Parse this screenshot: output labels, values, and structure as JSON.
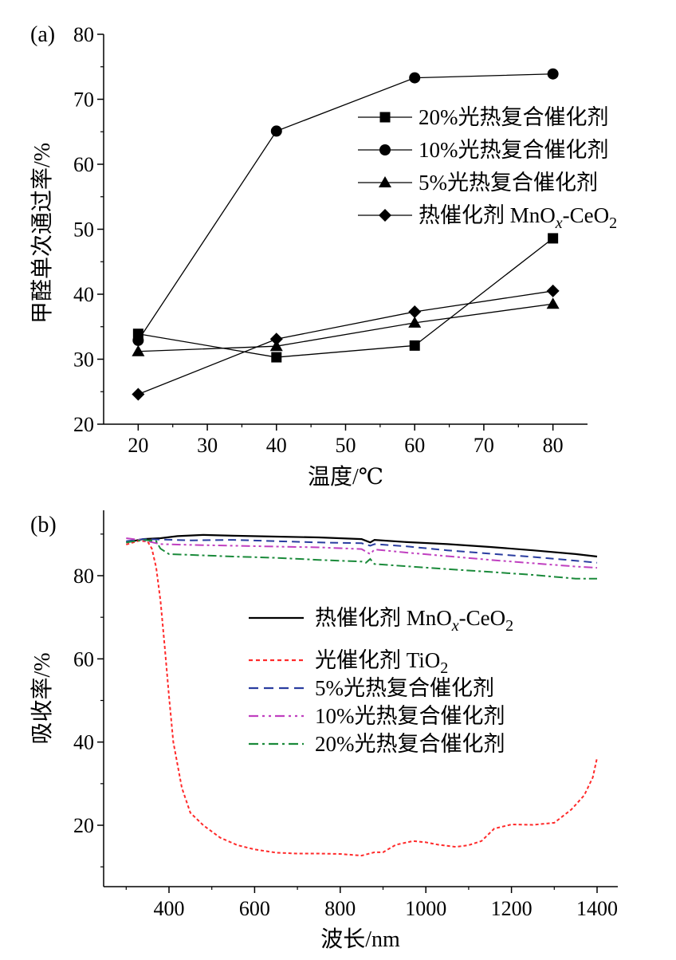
{
  "chart_data": [
    {
      "panel_label": "(a)",
      "type": "line",
      "xlabel": "温度/℃",
      "ylabel": "甲醛单次通过率/%",
      "xlim": [
        15,
        85
      ],
      "ylim": [
        20,
        80
      ],
      "xticks": [
        20,
        30,
        40,
        50,
        60,
        70,
        80
      ],
      "yticks": [
        20,
        30,
        40,
        50,
        60,
        70,
        80
      ],
      "legend_position": "upper-right",
      "x": [
        20,
        40,
        60,
        80
      ],
      "series": [
        {
          "name": "20%光热复合催化剂",
          "marker": "square",
          "values": [
            33.9,
            30.3,
            32.1,
            48.6
          ]
        },
        {
          "name": "10%光热复合催化剂",
          "marker": "circle",
          "values": [
            32.9,
            65.1,
            73.3,
            73.9
          ]
        },
        {
          "name": "5%光热复合催化剂",
          "marker": "triangle",
          "values": [
            31.2,
            32.0,
            35.6,
            38.5
          ]
        },
        {
          "name": "热催化剂 MnOx-CeO2",
          "name_parts": [
            "热催化剂 MnO",
            "x",
            "-CeO",
            "2"
          ],
          "marker": "diamond",
          "values": [
            24.6,
            33.1,
            37.3,
            40.5
          ]
        }
      ]
    },
    {
      "panel_label": "(b)",
      "type": "line",
      "xlabel": "波长/nm",
      "ylabel": "吸收率/%",
      "xlim": [
        260,
        1450
      ],
      "ylim": [
        6,
        95
      ],
      "xticks": [
        400,
        600,
        800,
        1000,
        1200,
        1400
      ],
      "yticks": [
        20,
        40,
        60,
        80
      ],
      "legend_position": "center-right",
      "series": [
        {
          "name": "热催化剂 MnOx-CeO2",
          "name_parts": [
            "热催化剂 MnO",
            "x",
            "-CeO",
            "2"
          ],
          "color": "#000000",
          "dash": "solid",
          "x": [
            300,
            340,
            380,
            420,
            480,
            550,
            650,
            750,
            850,
            870,
            880,
            950,
            1050,
            1150,
            1250,
            1350,
            1400
          ],
          "y": [
            88,
            88.8,
            89.0,
            89.5,
            89.8,
            89.6,
            89.4,
            89.2,
            88.8,
            88.0,
            88.6,
            88.1,
            87.6,
            86.9,
            86.1,
            85.2,
            84.6
          ]
        },
        {
          "name": "光催化剂 TiO2",
          "name_parts": [
            "光催化剂 TiO",
            "2"
          ],
          "color": "#ff2a2a",
          "dash": "dotted",
          "x": [
            300,
            330,
            350,
            360,
            370,
            380,
            390,
            400,
            410,
            430,
            450,
            480,
            520,
            560,
            600,
            650,
            700,
            750,
            800,
            850,
            880,
            900,
            930,
            970,
            1000,
            1030,
            1070,
            1100,
            1130,
            1160,
            1200,
            1250,
            1300,
            1340,
            1370,
            1390,
            1400
          ],
          "y": [
            87.5,
            88.4,
            88.2,
            86.5,
            82,
            74,
            63,
            51,
            40,
            29,
            23,
            20,
            17,
            15.2,
            14.2,
            13.4,
            13.2,
            13.2,
            13.1,
            12.7,
            13.5,
            13.5,
            15.3,
            16.2,
            15.9,
            15.3,
            14.8,
            15.2,
            16.2,
            19.2,
            20.2,
            20.1,
            20.6,
            23.8,
            27.2,
            31.5,
            36.2
          ]
        },
        {
          "name": "5%光热复合催化剂",
          "color": "#2a3da0",
          "dash": "dashed",
          "x": [
            300,
            340,
            380,
            450,
            550,
            650,
            750,
            850,
            870,
            880,
            950,
            1050,
            1150,
            1250,
            1350,
            1400
          ],
          "y": [
            88.3,
            88.8,
            88.7,
            88.5,
            88.6,
            88.3,
            88.0,
            87.8,
            87.2,
            87.6,
            87.1,
            86.1,
            85.3,
            84.5,
            83.6,
            83.1
          ]
        },
        {
          "name": "10%光热复合催化剂",
          "color": "#c040c0",
          "dash": "dashdotdot",
          "x": [
            300,
            340,
            380,
            450,
            550,
            650,
            750,
            850,
            870,
            880,
            950,
            1050,
            1150,
            1250,
            1350,
            1400
          ],
          "y": [
            89.0,
            88.5,
            87.6,
            87.4,
            87.2,
            87.0,
            86.8,
            86.4,
            85.2,
            86.3,
            85.6,
            84.7,
            83.8,
            83.0,
            82.2,
            81.9
          ]
        },
        {
          "name": "20%光热复合催化剂",
          "color": "#1a8a3a",
          "dash": "dashdot",
          "x": [
            300,
            340,
            370,
            380,
            400,
            450,
            550,
            650,
            750,
            850,
            860,
            870,
            880,
            950,
            1050,
            1150,
            1250,
            1350,
            1400
          ],
          "y": [
            88.0,
            88.6,
            88.3,
            86.5,
            85.2,
            85.0,
            84.6,
            84.3,
            83.8,
            83.4,
            83.1,
            84.0,
            82.8,
            82.3,
            81.6,
            80.9,
            80.2,
            79.3,
            79.3
          ]
        }
      ]
    }
  ]
}
